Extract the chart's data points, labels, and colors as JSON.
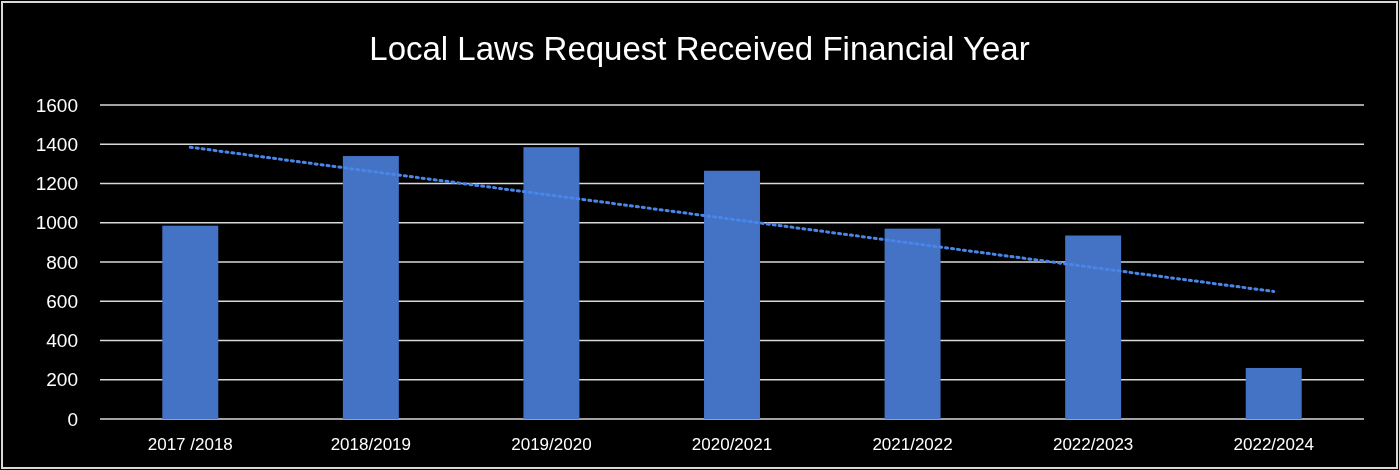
{
  "chart_data": {
    "type": "bar",
    "title": "Local Laws Request Received Financial Year",
    "categories": [
      "2017 /2018",
      "2018/2019",
      "2019/2020",
      "2020/2021",
      "2021/2022",
      "2022/2023",
      "2022/2024"
    ],
    "series": [
      {
        "color": "#4472c4",
        "values": [
          985,
          1340,
          1385,
          1265,
          970,
          935,
          260
        ]
      },
      {
        "type": "line",
        "color": "#4a86e8",
        "line_style": "dotted",
        "marker": "none",
        "values": [
          1385,
          1262,
          1140,
          1018,
          895,
          772,
          650
        ]
      }
    ],
    "ylim": [
      0,
      1600
    ],
    "yticks": [
      0,
      200,
      400,
      600,
      800,
      1000,
      1200,
      1400,
      1600
    ],
    "grid": "y"
  }
}
